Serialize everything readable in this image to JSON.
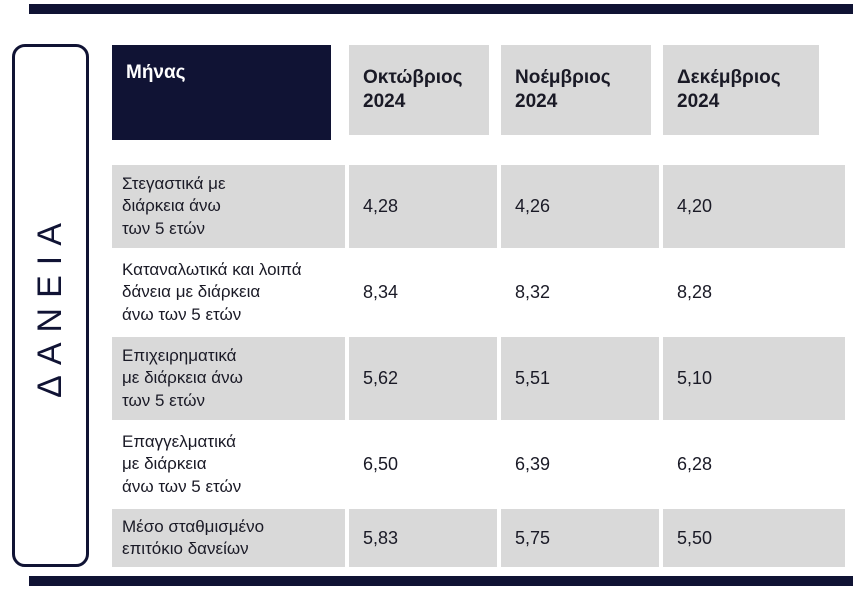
{
  "colors": {
    "navy": "#101334",
    "cell_gray": "#d9d9d9",
    "text": "#1a1a26"
  },
  "sidebar": {
    "label": "ΔΑΝΕΙΑ"
  },
  "table": {
    "corner_label": "Μήνας",
    "columns": [
      "Οκτώβριος\n2024",
      "Νοέμβριος\n2024",
      "Δεκέμβριος\n2024"
    ],
    "rows": [
      {
        "label": "Στεγαστικά με\nδιάρκεια άνω\nτων 5 ετών",
        "values": [
          "4,28",
          "4,26",
          "4,20"
        ]
      },
      {
        "label": "Καταναλωτικά και λοιπά\nδάνεια με διάρκεια\nάνω των 5 ετών",
        "values": [
          "8,34",
          "8,32",
          "8,28"
        ]
      },
      {
        "label": "Επιχειρηματικά\nμε διάρκεια άνω\nτων 5 ετών",
        "values": [
          "5,62",
          "5,51",
          "5,10"
        ]
      },
      {
        "label": "Επαγγελματικά\nμε διάρκεια\nάνω των 5 ετών",
        "values": [
          "6,50",
          "6,39",
          "6,28"
        ]
      },
      {
        "label": "Μέσο σταθμισμένο\nεπιτόκιο δανείων",
        "values": [
          "5,83",
          "5,75",
          "5,50"
        ]
      }
    ]
  },
  "chart_data": {
    "type": "table",
    "title": "ΔΑΝΕΙΑ",
    "row_header": "Μήνας",
    "categories": [
      "Οκτώβριος 2024",
      "Νοέμβριος 2024",
      "Δεκέμβριος 2024"
    ],
    "series": [
      {
        "name": "Στεγαστικά με διάρκεια άνω των 5 ετών",
        "values": [
          4.28,
          4.26,
          4.2
        ]
      },
      {
        "name": "Καταναλωτικά και λοιπά δάνεια με διάρκεια άνω των 5 ετών",
        "values": [
          8.34,
          8.32,
          8.28
        ]
      },
      {
        "name": "Επιχειρηματικά με διάρκεια άνω των 5 ετών",
        "values": [
          5.62,
          5.51,
          5.1
        ]
      },
      {
        "name": "Επαγγελματικά με διάρκεια άνω των 5 ετών",
        "values": [
          6.5,
          6.39,
          6.28
        ]
      },
      {
        "name": "Μέσο σταθμισμένο επιτόκιο δανείων",
        "values": [
          5.83,
          5.75,
          5.5
        ]
      }
    ]
  }
}
